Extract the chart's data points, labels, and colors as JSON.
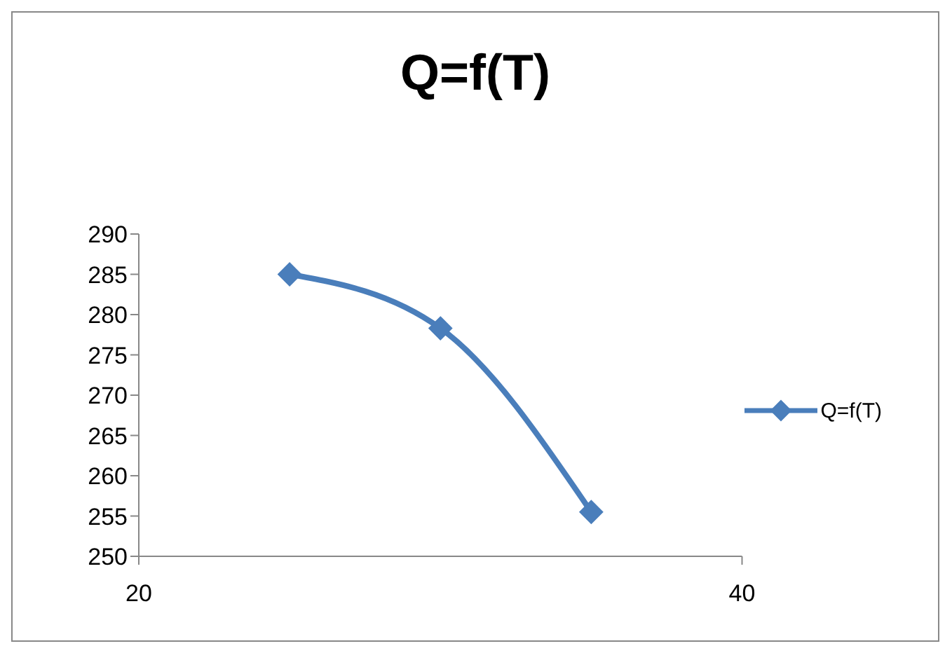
{
  "chart_data": {
    "type": "line",
    "title": "Q=f(T)",
    "x": [
      25,
      30,
      35
    ],
    "series": [
      {
        "name": "Q=f(T)",
        "color": "#4a7ebb",
        "values": [
          285,
          278.3,
          255.5
        ]
      }
    ],
    "xlim": [
      20,
      40
    ],
    "xticks": [
      20,
      40
    ],
    "ylim": [
      250,
      290
    ],
    "yticks": [
      250,
      255,
      260,
      265,
      270,
      275,
      280,
      285,
      290
    ],
    "grid": false,
    "legend": "right",
    "marker": "diamond",
    "line_style": "solid"
  }
}
